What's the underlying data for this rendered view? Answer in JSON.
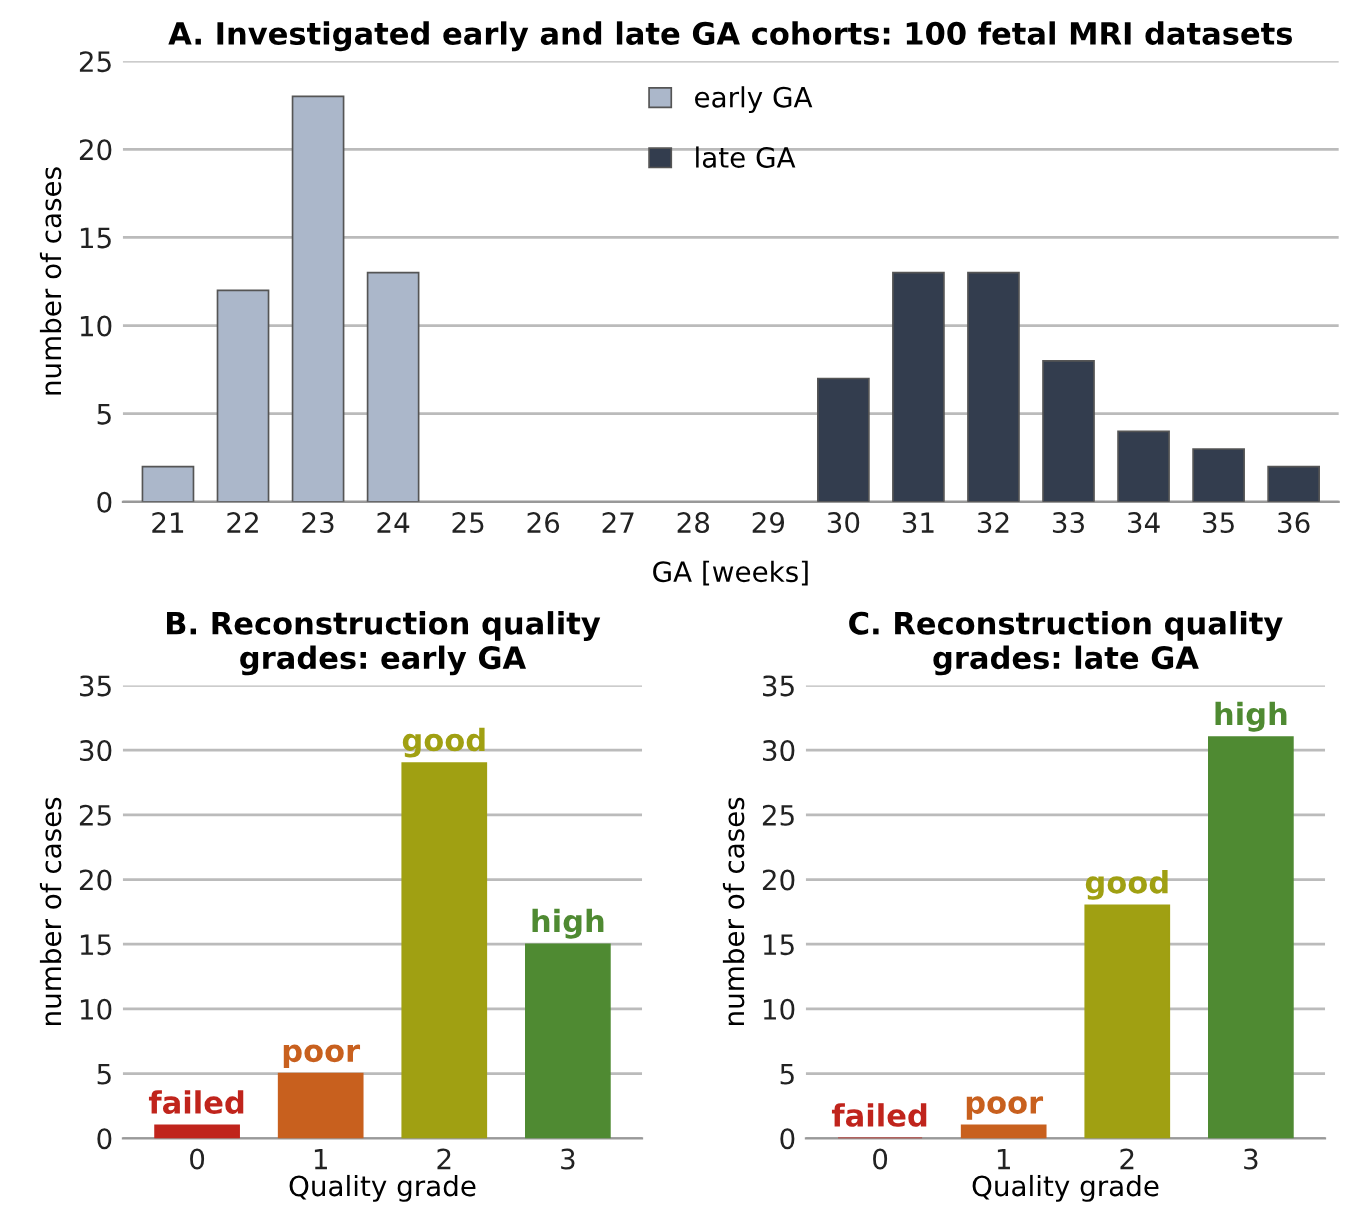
{
  "chart_data": [
    {
      "type": "bar",
      "title": "A. Investigated early and late GA cohorts: 100 fetal MRI datasets",
      "xlabel": "GA [weeks]",
      "ylabel": "number of cases",
      "categories": [
        "21",
        "22",
        "23",
        "24",
        "25",
        "26",
        "27",
        "28",
        "29",
        "30",
        "31",
        "32",
        "33",
        "34",
        "35",
        "36"
      ],
      "series": [
        {
          "name": "early GA",
          "color": "#abb7ca",
          "values": [
            2,
            12,
            23,
            13,
            null,
            null,
            null,
            null,
            null,
            null,
            null,
            null,
            null,
            null,
            null,
            null
          ]
        },
        {
          "name": "late GA",
          "color": "#333d4e",
          "values": [
            null,
            null,
            null,
            null,
            null,
            null,
            null,
            null,
            null,
            7,
            13,
            13,
            8,
            4,
            3,
            2
          ]
        }
      ],
      "ylim": [
        0,
        25
      ],
      "yticks": [
        0,
        5,
        10,
        15,
        20,
        25
      ],
      "grid": "y",
      "legend": "top"
    },
    {
      "type": "bar",
      "title": "B. Reconstruction quality grades: early GA",
      "xlabel": "Quality grade",
      "ylabel": "number of cases",
      "categories": [
        "0",
        "1",
        "2",
        "3"
      ],
      "values": [
        1,
        5,
        29,
        15
      ],
      "colors": [
        "#c0241c",
        "#c8601e",
        "#a0a012",
        "#4f8a32"
      ],
      "ylim": [
        0,
        35
      ],
      "yticks": [
        0,
        5,
        10,
        15,
        20,
        25,
        30,
        35
      ],
      "grid": "y",
      "annotations": [
        {
          "text": "failed",
          "x": "0",
          "y": 1
        },
        {
          "text": "poor",
          "x": "1",
          "y": 5
        },
        {
          "text": "good",
          "x": "2",
          "y": 29
        },
        {
          "text": "high",
          "x": "3",
          "y": 15
        }
      ]
    },
    {
      "type": "bar",
      "title": "C. Reconstruction quality grades: late GA",
      "xlabel": "Quality grade",
      "ylabel": "number of cases",
      "categories": [
        "0",
        "1",
        "2",
        "3"
      ],
      "values": [
        0,
        1,
        18,
        31
      ],
      "colors": [
        "#c0241c",
        "#c8601e",
        "#a0a012",
        "#4f8a32"
      ],
      "ylim": [
        0,
        35
      ],
      "yticks": [
        0,
        5,
        10,
        15,
        20,
        25,
        30,
        35
      ],
      "grid": "y",
      "annotations": [
        {
          "text": "failed",
          "x": "0",
          "y": 0
        },
        {
          "text": "poor",
          "x": "1",
          "y": 1
        },
        {
          "text": "good",
          "x": "2",
          "y": 18
        },
        {
          "text": "high",
          "x": "3",
          "y": 31
        }
      ]
    }
  ]
}
